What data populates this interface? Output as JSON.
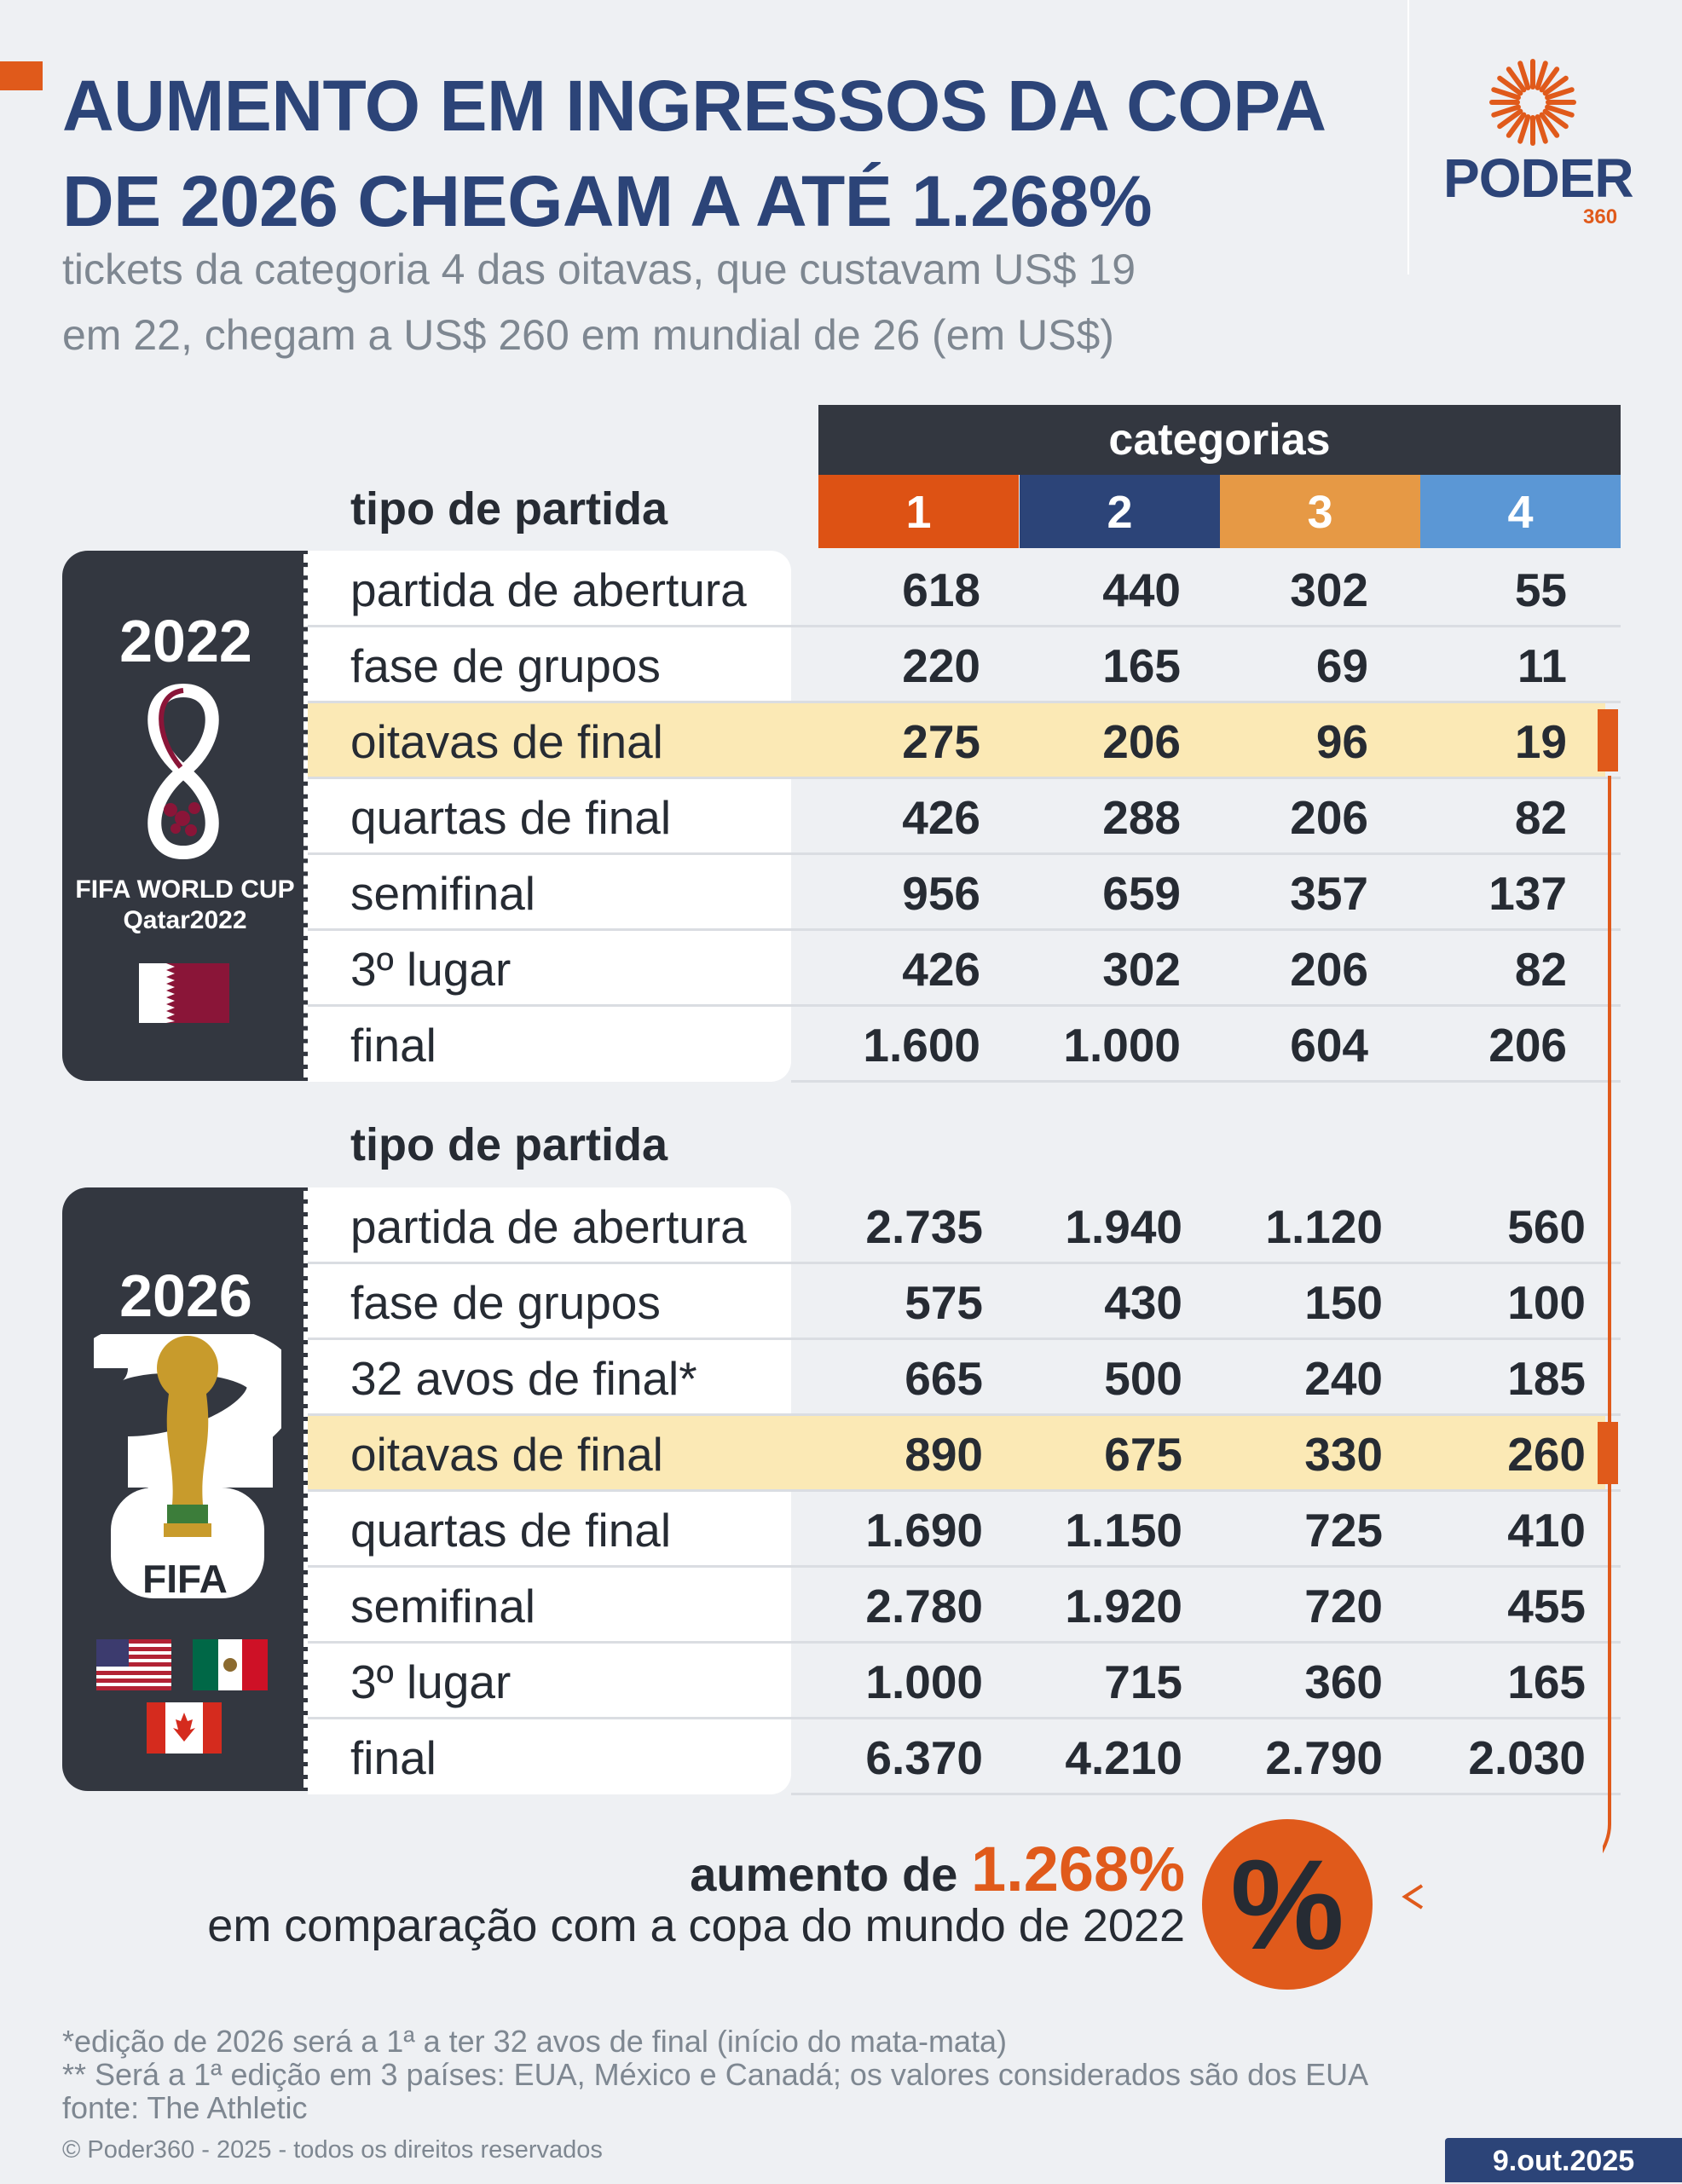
{
  "header": {
    "title_lines": [
      "AUMENTO EM INGRESSOS DA COPA",
      "DE 2026 CHEGAM A ATÉ 1.268%"
    ],
    "subtitle_lines": [
      "tickets da categoria 4 das oitavas, que custavam US$ 19",
      "em 22, chegam a US$ 260 em mundial de 26 (em US$)"
    ],
    "logo_word": "PODER",
    "logo_number": "360",
    "logo_icon": "sunburst-icon"
  },
  "colors": {
    "accent": "#e05a1b",
    "navy": "#2c4478",
    "dark": "#333740",
    "highlight": "#fbe9b5",
    "cat1": "#dd5214",
    "cat2": "#2c4478",
    "cat3": "#e69945",
    "cat4": "#5b97d5"
  },
  "chart_data": {
    "type": "table",
    "title": "AUMENTO EM INGRESSOS DA COPA DE 2026 CHEGAM A ATÉ 1.268%",
    "group_header": "categorias",
    "row_header": "tipo de partida",
    "categories": [
      "1",
      "2",
      "3",
      "4"
    ],
    "tables": [
      {
        "year": "2022",
        "emblem": "FIFA WORLD CUP Qatar2022",
        "flags": [
          "qatar-flag-icon"
        ],
        "rows": [
          {
            "label": "partida de abertura",
            "values": [
              "618",
              "440",
              "302",
              "55"
            ]
          },
          {
            "label": "fase de grupos",
            "values": [
              "220",
              "165",
              "69",
              "11"
            ]
          },
          {
            "label": "oitavas de final",
            "values": [
              "275",
              "206",
              "96",
              "19"
            ],
            "highlight": true
          },
          {
            "label": "quartas de final",
            "values": [
              "426",
              "288",
              "206",
              "82"
            ]
          },
          {
            "label": "semifinal",
            "values": [
              "956",
              "659",
              "357",
              "137"
            ]
          },
          {
            "label": "3º lugar",
            "values": [
              "426",
              "302",
              "206",
              "82"
            ]
          },
          {
            "label": "final",
            "values": [
              "1.600",
              "1.000",
              "604",
              "206"
            ]
          }
        ]
      },
      {
        "year": "2026",
        "emblem": "FIFA",
        "flags": [
          "usa-flag-icon",
          "mexico-flag-icon",
          "canada-flag-icon"
        ],
        "rows": [
          {
            "label": "partida de abertura",
            "values": [
              "2.735",
              "1.940",
              "1.120",
              "560"
            ]
          },
          {
            "label": "fase de grupos",
            "values": [
              "575",
              "430",
              "150",
              "100"
            ]
          },
          {
            "label": "32 avos de final*",
            "values": [
              "665",
              "500",
              "240",
              "185"
            ]
          },
          {
            "label": "oitavas de final",
            "values": [
              "890",
              "675",
              "330",
              "260"
            ],
            "highlight": true
          },
          {
            "label": "quartas de final",
            "values": [
              "1.690",
              "1.150",
              "725",
              "410"
            ]
          },
          {
            "label": "semifinal",
            "values": [
              "2.780",
              "1.920",
              "720",
              "455"
            ]
          },
          {
            "label": "3º lugar",
            "values": [
              "1.000",
              "715",
              "360",
              "165"
            ]
          },
          {
            "label": "final",
            "values": [
              "6.370",
              "4.210",
              "2.790",
              "2.030"
            ]
          }
        ]
      }
    ]
  },
  "summary": {
    "prefix": "aumento de ",
    "value": "1.268%",
    "line2": "em comparação com a copa do mundo de 2022",
    "icon_glyph": "%"
  },
  "footer": {
    "notes": [
      "*edição de 2026 será a 1ª a ter 32 avos de final (início do mata-mata)",
      "** Será a 1ª edição em 3 países: EUA, México e Canadá; os valores considerados são dos EUA",
      "fonte: The Athletic"
    ],
    "copyright": "© Poder360 - 2025 - todos os direitos reservados",
    "date": "9.out.2025"
  }
}
